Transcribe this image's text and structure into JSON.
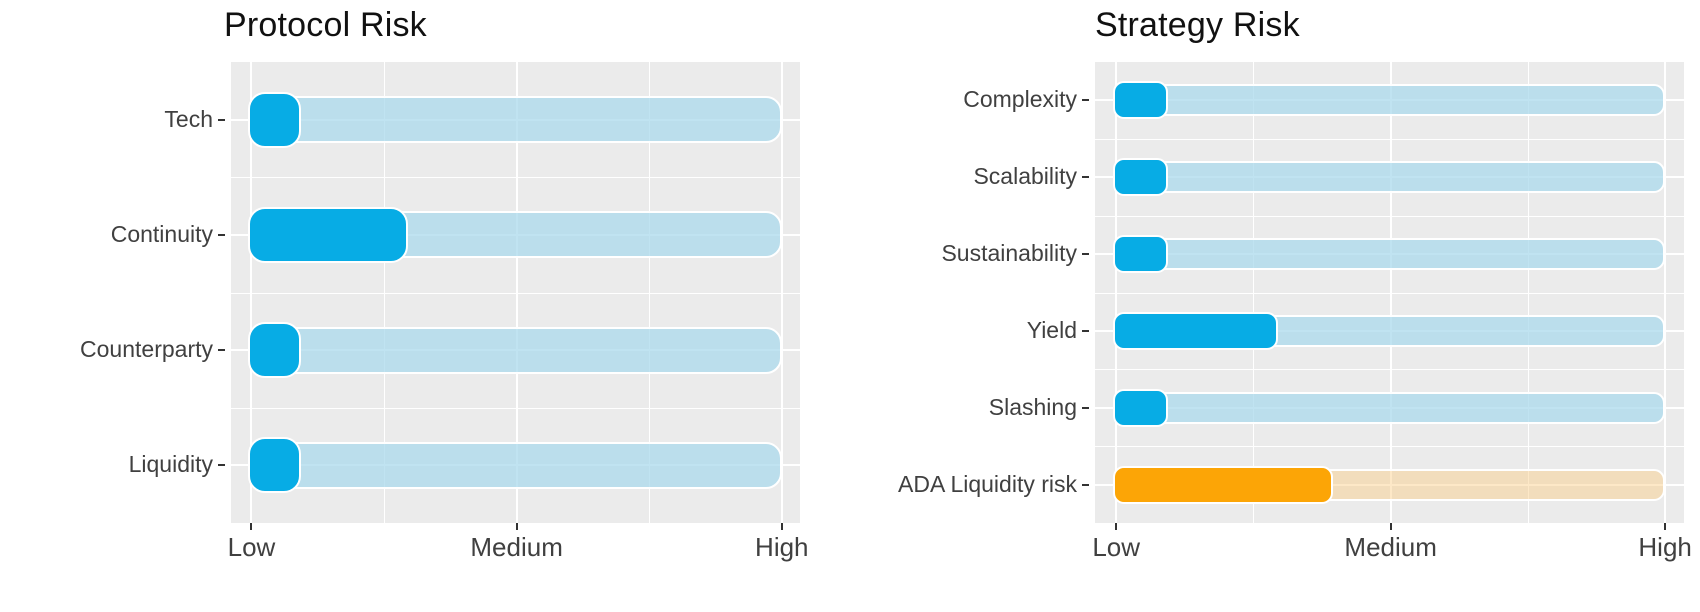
{
  "style": {
    "background": "#FFFFFF",
    "panel_background": "#EBEBEB",
    "grid_color": "#FFFFFF",
    "title_color": "#111111",
    "label_color": "#404040",
    "tick_color": "#333333",
    "accent_blue": "#07ACE5",
    "accent_blue_track": "rgba(168,216,236,0.72)",
    "accent_orange": "#FCA506",
    "accent_orange_track": "rgba(250,205,130,0.45)"
  },
  "chart_data": [
    {
      "type": "bar",
      "orientation": "horizontal",
      "title": "Protocol Risk",
      "categories": [
        "Tech",
        "Continuity",
        "Counterparty",
        "Liquidity"
      ],
      "values_pct_low_to_high": [
        10,
        30,
        10,
        10
      ],
      "bar_colors": [
        "#07ACE5",
        "#07ACE5",
        "#07ACE5",
        "#07ACE5"
      ],
      "track_colors": [
        "rgba(168,216,236,0.72)",
        "rgba(168,216,236,0.72)",
        "rgba(168,216,236,0.72)",
        "rgba(168,216,236,0.72)"
      ],
      "xticks": [
        "Low",
        "Medium",
        "High"
      ],
      "xlabel": "",
      "ylabel": "",
      "axis_range": [
        "Low",
        "High"
      ],
      "grid": true,
      "legend": false
    },
    {
      "type": "bar",
      "orientation": "horizontal",
      "title": "Strategy Risk",
      "categories": [
        "Complexity",
        "Scalability",
        "Sustainability",
        "Yield",
        "Slashing",
        "ADA Liquidity risk"
      ],
      "values_pct_low_to_high": [
        10,
        10,
        10,
        30,
        10,
        40
      ],
      "bar_colors": [
        "#07ACE5",
        "#07ACE5",
        "#07ACE5",
        "#07ACE5",
        "#07ACE5",
        "#FCA506"
      ],
      "track_colors": [
        "rgba(168,216,236,0.72)",
        "rgba(168,216,236,0.72)",
        "rgba(168,216,236,0.72)",
        "rgba(168,216,236,0.72)",
        "rgba(168,216,236,0.72)",
        "rgba(250,205,130,0.45)"
      ],
      "xticks": [
        "Low",
        "Medium",
        "High"
      ],
      "xlabel": "",
      "ylabel": "",
      "axis_range": [
        "Low",
        "High"
      ],
      "grid": true,
      "legend": false
    }
  ]
}
